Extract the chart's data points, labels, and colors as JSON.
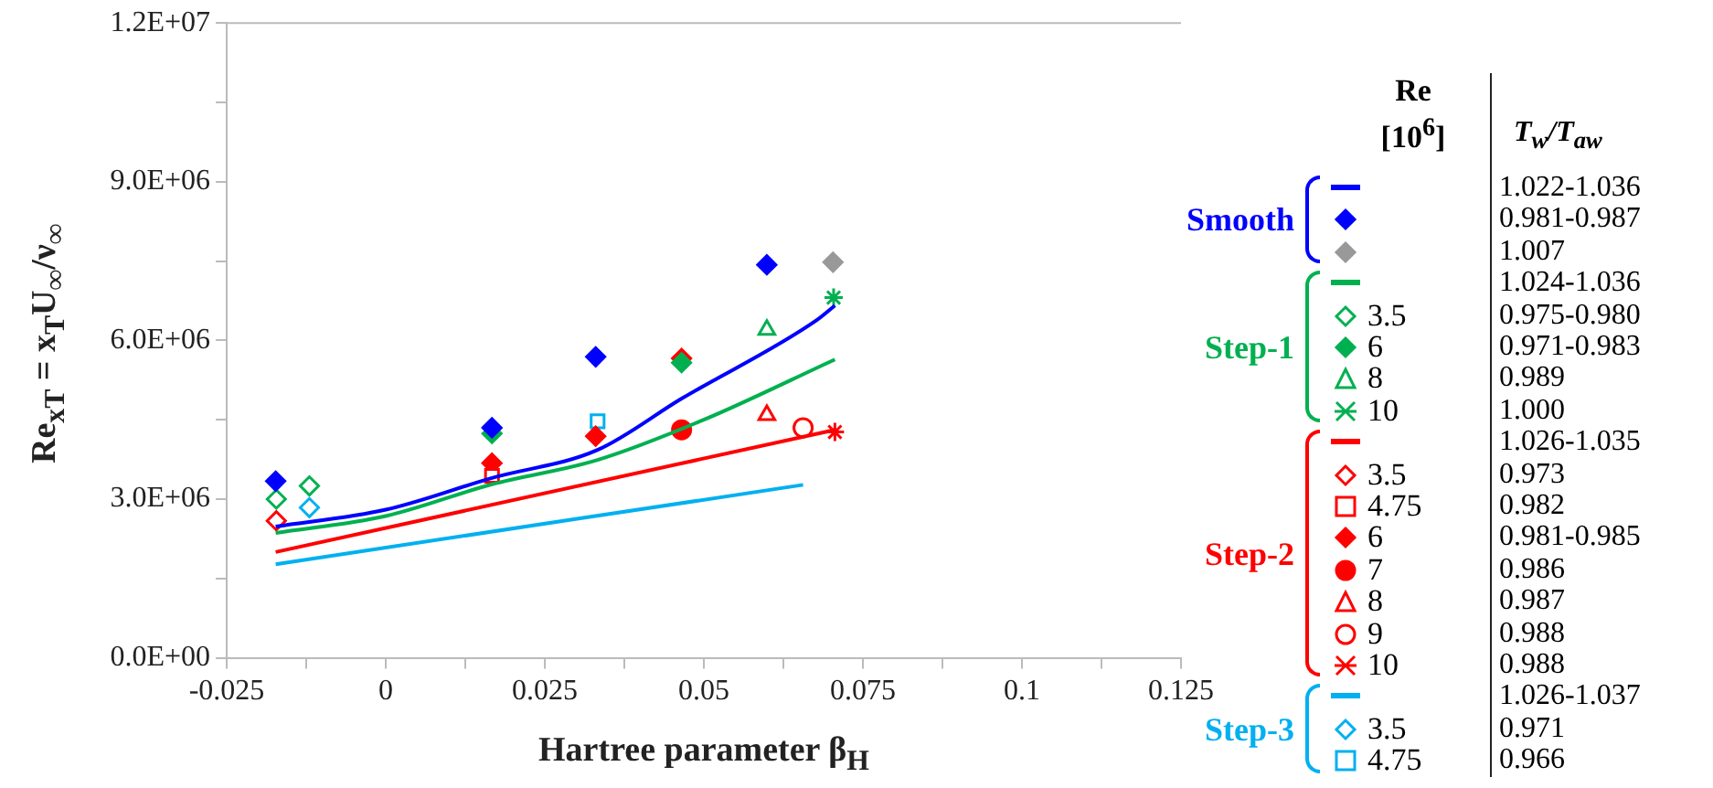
{
  "chart_data": {
    "type": "scatter",
    "xlabel": "Hartree parameter β$_{H}$",
    "ylabel": "Re$_{xT}$ = x$_{T}$U$_{∞}$/ν$_{∞}$",
    "xlim": [
      -0.025,
      0.125
    ],
    "xticks": [
      -0.025,
      {
        "value": -0.0125,
        "label": null
      },
      0,
      {
        "value": 0.0125,
        "label": null
      },
      0.025,
      {
        "value": 0.0375,
        "label": null
      },
      0.05,
      {
        "value": 0.0625,
        "label": null
      },
      0.075,
      {
        "value": 0.0875,
        "label": null
      },
      0.1,
      {
        "value": 0.1125,
        "label": null
      },
      0.125
    ],
    "ylim": [
      0,
      12000000
    ],
    "yticks": [
      {
        "value": 0,
        "label": "0.0E+00"
      },
      {
        "value": 1500000,
        "label": null
      },
      {
        "value": 3000000,
        "label": "3.0E+06"
      },
      {
        "value": 4500000,
        "label": null
      },
      {
        "value": 6000000,
        "label": "6.0E+06"
      },
      {
        "value": 7500000,
        "label": null
      },
      {
        "value": 9000000,
        "label": "9.0E+06"
      },
      {
        "value": 10500000,
        "label": null
      },
      {
        "value": 12000000,
        "label": "1.2E+07"
      }
    ],
    "grid": false,
    "legend": "right",
    "annotations": [
      "Re [10$^{6}$]",
      "T$_{w}$/T$_{aw}$",
      "Smooth",
      "Step-1",
      "Step-2",
      "Step-3",
      "1.022-1.036",
      "0.981-0.987",
      "1.007",
      "1.024-1.036",
      "0.975-0.980",
      "0.971-0.983",
      "0.989",
      "1.000",
      "1.026-1.035",
      "0.973",
      "0.982",
      "0.981-0.985",
      "0.986",
      "0.987",
      "0.988",
      "0.988",
      "1.026-1.037",
      "0.971",
      "0.966"
    ],
    "series": [
      {
        "type": "line",
        "color": "#0000ff",
        "x": [
          -0.0173,
          0,
          0.0167,
          0.0333,
          0.0465,
          0.0677,
          0.0706
        ],
        "values": [
          2480000,
          2800000,
          3400000,
          3930000,
          4900000,
          6380000,
          6660000
        ]
      },
      {
        "type": "scatter",
        "marker": "diamond",
        "color": "#0000ff",
        "x": [
          -0.0173,
          0.0167,
          0.033,
          0.0599
        ],
        "values": [
          3340000,
          4350000,
          5690000,
          7430000
        ]
      },
      {
        "type": "scatter",
        "marker": "diamond",
        "color": "#999999",
        "x": [
          0.0703
        ],
        "values": [
          7480000
        ]
      },
      {
        "type": "line",
        "color": "#00b050",
        "x": [
          -0.0173,
          0,
          0.0167,
          0.0333,
          0.05,
          0.0706
        ],
        "values": [
          2360000,
          2680000,
          3280000,
          3740000,
          4500000,
          5640000
        ]
      },
      {
        "type": "scatter",
        "name": "3.5",
        "marker": "diamond-open",
        "color": "#00b050",
        "x": [
          -0.0172,
          -0.012
        ],
        "values": [
          3000000,
          3250000
        ]
      },
      {
        "type": "scatter",
        "name": "6",
        "marker": "diamond",
        "color": "#00b050",
        "x": [
          0.0167,
          0.0465
        ],
        "values": [
          4240000,
          5580000
        ]
      },
      {
        "type": "scatter",
        "name": "8",
        "marker": "triangle-open",
        "color": "#00b050",
        "x": [
          0.0599
        ],
        "values": [
          6200000
        ]
      },
      {
        "type": "scatter",
        "name": "10",
        "marker": "cross",
        "color": "#00b050",
        "x": [
          0.0704
        ],
        "values": [
          6810000
        ]
      },
      {
        "type": "line",
        "color": "#ff0000",
        "x": [
          -0.0173,
          0.0706
        ],
        "values": [
          2000000,
          4310000
        ]
      },
      {
        "type": "scatter",
        "name": "3.5",
        "marker": "diamond-open",
        "color": "#ff0000",
        "x": [
          -0.0172
        ],
        "values": [
          2590000
        ]
      },
      {
        "type": "scatter",
        "name": "4.75",
        "marker": "square-open",
        "color": "#ff0000",
        "x": [
          0.0167
        ],
        "values": [
          3440000
        ]
      },
      {
        "type": "scatter",
        "name": "6",
        "marker": "diamond",
        "color": "#ff0000",
        "x": [
          0.0167,
          0.033,
          0.0465
        ],
        "values": [
          3680000,
          4190000,
          5660000
        ]
      },
      {
        "type": "scatter",
        "name": "7",
        "marker": "circle",
        "color": "#ff0000",
        "x": [
          0.0465
        ],
        "values": [
          4310000
        ]
      },
      {
        "type": "scatter",
        "name": "8",
        "marker": "triangle-open",
        "color": "#ff0000",
        "x": [
          0.0599
        ],
        "values": [
          4590000
        ]
      },
      {
        "type": "scatter",
        "name": "9",
        "marker": "circle-open",
        "color": "#ff0000",
        "x": [
          0.0656
        ],
        "values": [
          4350000
        ]
      },
      {
        "type": "scatter",
        "name": "10",
        "marker": "cross",
        "color": "#ff0000",
        "x": [
          0.0706
        ],
        "values": [
          4270000
        ]
      },
      {
        "type": "line",
        "color": "#00b0f0",
        "x": [
          -0.0173,
          0.0656
        ],
        "values": [
          1770000,
          3270000
        ]
      },
      {
        "type": "scatter",
        "name": "3.5",
        "marker": "diamond-open",
        "color": "#00b0f0",
        "x": [
          -0.012
        ],
        "values": [
          2840000
        ]
      },
      {
        "type": "scatter",
        "name": "4.75",
        "marker": "square-open",
        "color": "#00b0f0",
        "x": [
          0.0333
        ],
        "values": [
          4470000
        ]
      }
    ]
  }
}
